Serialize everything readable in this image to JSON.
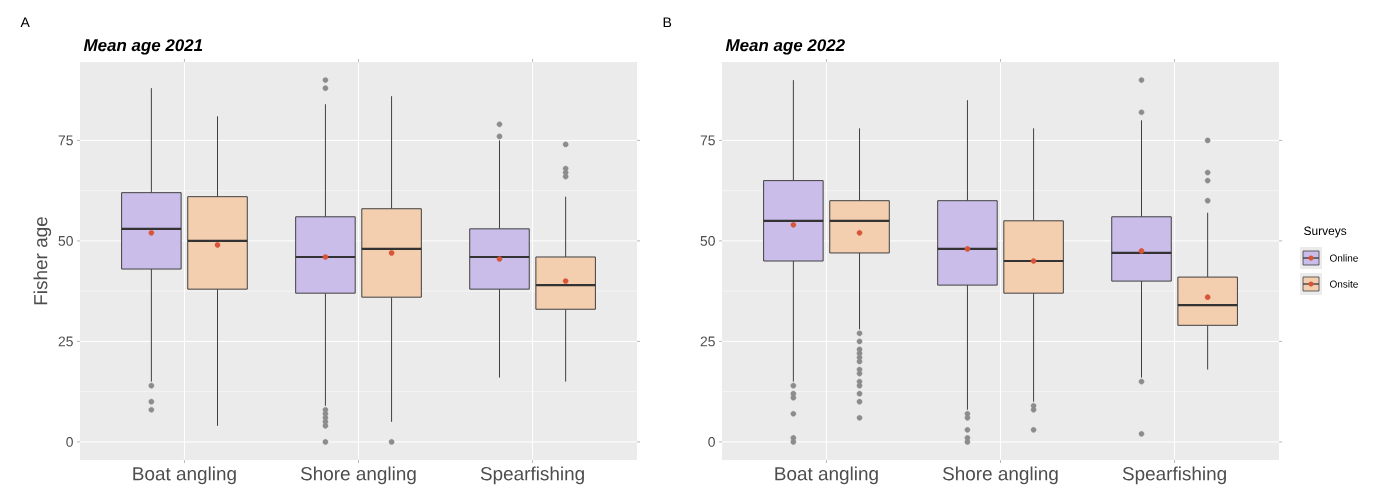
{
  "chart_data": [
    {
      "type": "box",
      "title": "Mean age 2021",
      "ylabel": "Fisher age",
      "annotations": [
        "A"
      ],
      "categories": [
        "Boat angling",
        "Shore angling",
        "Spearfishing"
      ],
      "ylim": [
        -4.5,
        94.5
      ],
      "yticks": [
        0,
        25,
        50,
        75
      ],
      "grid": true,
      "series": [
        {
          "color": "#cbbdea",
          "boxes": [
            {
              "low": 15,
              "q1": 43,
              "median": 53,
              "q3": 62,
              "high": 88,
              "mean": 52,
              "outliers": [
                14,
                10,
                8
              ]
            },
            {
              "low": 9,
              "q1": 37,
              "median": 46,
              "q3": 56,
              "high": 84,
              "mean": 46,
              "outliers": [
                90,
                88,
                8,
                7,
                6,
                5,
                4,
                0
              ]
            },
            {
              "low": 16,
              "q1": 38,
              "median": 46,
              "q3": 53,
              "high": 75,
              "mean": 45.5,
              "outliers": [
                79,
                76
              ]
            }
          ]
        },
        {
          "color": "#f3cfb0",
          "boxes": [
            {
              "low": 4,
              "q1": 38,
              "median": 50,
              "q3": 61,
              "high": 81,
              "mean": 49
            },
            {
              "low": 5,
              "q1": 36,
              "median": 48,
              "q3": 58,
              "high": 86,
              "mean": 47,
              "outliers": [
                0
              ]
            },
            {
              "low": 15,
              "q1": 33,
              "median": 39,
              "q3": 46,
              "high": 61,
              "mean": 40,
              "outliers": [
                74,
                68,
                67,
                66
              ]
            }
          ]
        }
      ]
    },
    {
      "type": "box",
      "title": "Mean age 2022",
      "annotations": [
        "B"
      ],
      "categories": [
        "Boat angling",
        "Shore angling",
        "Spearfishing"
      ],
      "ylim": [
        -4.5,
        94.5
      ],
      "yticks": [
        0,
        25,
        50,
        75
      ],
      "grid": true,
      "legend": "right",
      "legend_title": "Surveys",
      "series": [
        {
          "name": "Online",
          "color": "#cbbdea",
          "boxes": [
            {
              "low": 15,
              "q1": 45,
              "median": 55,
              "q3": 65,
              "high": 90,
              "mean": 54,
              "outliers": [
                14,
                12,
                11,
                7,
                1,
                0
              ]
            },
            {
              "low": 8,
              "q1": 39,
              "median": 48,
              "q3": 60,
              "high": 85,
              "mean": 48,
              "outliers": [
                7,
                6,
                3,
                1,
                0
              ]
            },
            {
              "low": 16,
              "q1": 40,
              "median": 47,
              "q3": 56,
              "high": 80,
              "mean": 47.5,
              "outliers": [
                90,
                82,
                15,
                2
              ]
            }
          ]
        },
        {
          "name": "Onsite",
          "color": "#f3cfb0",
          "boxes": [
            {
              "low": 28,
              "q1": 47,
              "median": 55,
              "q3": 60,
              "high": 78,
              "mean": 52,
              "outliers": [
                27,
                25,
                23,
                22,
                21,
                20,
                18,
                17,
                15,
                14,
                12,
                10,
                6
              ]
            },
            {
              "low": 10,
              "q1": 37,
              "median": 45,
              "q3": 55,
              "high": 78,
              "mean": 45,
              "outliers": [
                9,
                8,
                3
              ]
            },
            {
              "low": 18,
              "q1": 29,
              "median": 34,
              "q3": 41,
              "high": 57,
              "mean": 36,
              "outliers": [
                75,
                67,
                65,
                60
              ]
            }
          ]
        }
      ]
    }
  ]
}
